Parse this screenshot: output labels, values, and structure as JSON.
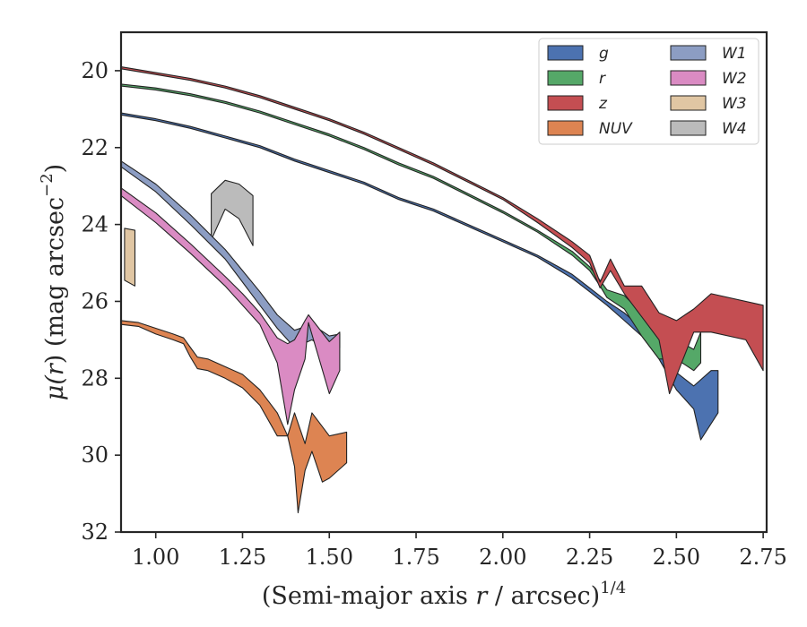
{
  "chart_data": {
    "type": "area",
    "xlabel": "(Semi-major axis r / arcsec)^1/4",
    "xlabel_parts": {
      "prefix": "(Semi-major axis ",
      "var": "r",
      "suffix": " / arcsec)",
      "sup": "1/4"
    },
    "ylabel": "μ(r) (mag arcsec^−2)",
    "ylabel_parts": {
      "prefix": "μ(",
      "var": "r",
      "suffix": ") (mag arcsec",
      "sup": "−2",
      "end": ")"
    },
    "xlim": [
      0.9,
      2.76
    ],
    "ylim": [
      32,
      19
    ],
    "y_inverted": true,
    "x_ticks": [
      "1.00",
      "1.25",
      "1.50",
      "1.75",
      "2.00",
      "2.25",
      "2.50",
      "2.75"
    ],
    "y_ticks": [
      "20",
      "22",
      "24",
      "26",
      "28",
      "30",
      "32"
    ],
    "grid": false,
    "legend_position": "top-right",
    "series": [
      {
        "name": "g",
        "color": "#4c72b0",
        "upper": [
          [
            0.9,
            21.1
          ],
          [
            1.0,
            21.25
          ],
          [
            1.1,
            21.45
          ],
          [
            1.2,
            21.7
          ],
          [
            1.3,
            21.95
          ],
          [
            1.4,
            22.3
          ],
          [
            1.5,
            22.6
          ],
          [
            1.6,
            22.9
          ],
          [
            1.7,
            23.3
          ],
          [
            1.8,
            23.6
          ],
          [
            1.9,
            24.0
          ],
          [
            2.0,
            24.4
          ],
          [
            2.1,
            24.8
          ],
          [
            2.2,
            25.3
          ],
          [
            2.25,
            25.65
          ],
          [
            2.3,
            26.0
          ],
          [
            2.35,
            26.3
          ],
          [
            2.4,
            26.7
          ],
          [
            2.45,
            27.2
          ],
          [
            2.5,
            27.85
          ],
          [
            2.55,
            28.2
          ],
          [
            2.6,
            27.8
          ],
          [
            2.62,
            27.8
          ]
        ],
        "lower": [
          [
            0.9,
            21.15
          ],
          [
            1.0,
            21.3
          ],
          [
            1.1,
            21.5
          ],
          [
            1.2,
            21.75
          ],
          [
            1.3,
            22.0
          ],
          [
            1.4,
            22.35
          ],
          [
            1.5,
            22.65
          ],
          [
            1.6,
            22.95
          ],
          [
            1.7,
            23.35
          ],
          [
            1.8,
            23.65
          ],
          [
            1.9,
            24.05
          ],
          [
            2.0,
            24.45
          ],
          [
            2.1,
            24.85
          ],
          [
            2.2,
            25.4
          ],
          [
            2.25,
            25.75
          ],
          [
            2.3,
            26.1
          ],
          [
            2.35,
            26.5
          ],
          [
            2.4,
            26.9
          ],
          [
            2.45,
            27.5
          ],
          [
            2.5,
            28.3
          ],
          [
            2.55,
            28.8
          ],
          [
            2.57,
            29.6
          ],
          [
            2.62,
            28.9
          ]
        ]
      },
      {
        "name": "r",
        "color": "#55a868",
        "upper": [
          [
            0.9,
            20.35
          ],
          [
            1.0,
            20.45
          ],
          [
            1.1,
            20.6
          ],
          [
            1.2,
            20.8
          ],
          [
            1.3,
            21.05
          ],
          [
            1.4,
            21.35
          ],
          [
            1.5,
            21.65
          ],
          [
            1.6,
            22.0
          ],
          [
            1.7,
            22.4
          ],
          [
            1.8,
            22.75
          ],
          [
            1.9,
            23.2
          ],
          [
            2.0,
            23.65
          ],
          [
            2.1,
            24.15
          ],
          [
            2.2,
            24.7
          ],
          [
            2.25,
            25.1
          ],
          [
            2.28,
            25.45
          ],
          [
            2.3,
            25.7
          ],
          [
            2.35,
            25.85
          ],
          [
            2.4,
            26.3
          ],
          [
            2.45,
            26.8
          ],
          [
            2.5,
            27.0
          ],
          [
            2.55,
            27.25
          ],
          [
            2.57,
            26.8
          ]
        ],
        "lower": [
          [
            0.9,
            20.4
          ],
          [
            1.0,
            20.5
          ],
          [
            1.1,
            20.65
          ],
          [
            1.2,
            20.85
          ],
          [
            1.3,
            21.1
          ],
          [
            1.4,
            21.4
          ],
          [
            1.5,
            21.7
          ],
          [
            1.6,
            22.05
          ],
          [
            1.7,
            22.45
          ],
          [
            1.8,
            22.8
          ],
          [
            1.9,
            23.25
          ],
          [
            2.0,
            23.7
          ],
          [
            2.1,
            24.2
          ],
          [
            2.2,
            24.8
          ],
          [
            2.25,
            25.2
          ],
          [
            2.28,
            25.6
          ],
          [
            2.3,
            25.9
          ],
          [
            2.35,
            26.2
          ],
          [
            2.4,
            26.9
          ],
          [
            2.45,
            27.5
          ],
          [
            2.5,
            27.5
          ],
          [
            2.55,
            27.8
          ],
          [
            2.57,
            27.6
          ]
        ]
      },
      {
        "name": "z",
        "color": "#c44e52",
        "upper": [
          [
            0.9,
            19.9
          ],
          [
            1.0,
            20.05
          ],
          [
            1.1,
            20.2
          ],
          [
            1.2,
            20.4
          ],
          [
            1.3,
            20.65
          ],
          [
            1.4,
            20.95
          ],
          [
            1.5,
            21.25
          ],
          [
            1.6,
            21.6
          ],
          [
            1.7,
            22.0
          ],
          [
            1.8,
            22.4
          ],
          [
            1.9,
            22.85
          ],
          [
            2.0,
            23.3
          ],
          [
            2.1,
            23.85
          ],
          [
            2.2,
            24.45
          ],
          [
            2.25,
            24.8
          ],
          [
            2.28,
            25.5
          ],
          [
            2.31,
            24.9
          ],
          [
            2.35,
            25.6
          ],
          [
            2.4,
            25.6
          ],
          [
            2.45,
            26.3
          ],
          [
            2.5,
            26.5
          ],
          [
            2.55,
            26.2
          ],
          [
            2.6,
            25.8
          ],
          [
            2.75,
            26.1
          ]
        ],
        "lower": [
          [
            0.9,
            19.95
          ],
          [
            1.0,
            20.1
          ],
          [
            1.1,
            20.25
          ],
          [
            1.2,
            20.45
          ],
          [
            1.3,
            20.7
          ],
          [
            1.4,
            21.0
          ],
          [
            1.5,
            21.3
          ],
          [
            1.6,
            21.65
          ],
          [
            1.7,
            22.05
          ],
          [
            1.8,
            22.45
          ],
          [
            1.9,
            22.9
          ],
          [
            2.0,
            23.35
          ],
          [
            2.1,
            23.95
          ],
          [
            2.2,
            24.6
          ],
          [
            2.25,
            25.0
          ],
          [
            2.28,
            25.65
          ],
          [
            2.31,
            25.2
          ],
          [
            2.35,
            25.8
          ],
          [
            2.4,
            26.4
          ],
          [
            2.45,
            27.0
          ],
          [
            2.48,
            28.4
          ],
          [
            2.55,
            26.8
          ],
          [
            2.6,
            26.8
          ],
          [
            2.7,
            27.0
          ],
          [
            2.75,
            27.8
          ]
        ]
      },
      {
        "name": "NUV",
        "color": "#dd8452",
        "upper": [
          [
            0.9,
            26.5
          ],
          [
            0.95,
            26.55
          ],
          [
            1.0,
            26.7
          ],
          [
            1.05,
            26.85
          ],
          [
            1.08,
            26.95
          ],
          [
            1.1,
            27.2
          ],
          [
            1.12,
            27.45
          ],
          [
            1.15,
            27.5
          ],
          [
            1.2,
            27.7
          ],
          [
            1.25,
            27.9
          ],
          [
            1.3,
            28.3
          ],
          [
            1.35,
            28.9
          ],
          [
            1.38,
            29.5
          ],
          [
            1.4,
            28.9
          ],
          [
            1.43,
            29.7
          ],
          [
            1.45,
            28.9
          ],
          [
            1.5,
            29.5
          ],
          [
            1.55,
            29.4
          ]
        ],
        "lower": [
          [
            0.9,
            26.6
          ],
          [
            0.95,
            26.65
          ],
          [
            1.0,
            26.85
          ],
          [
            1.05,
            27.0
          ],
          [
            1.08,
            27.1
          ],
          [
            1.1,
            27.45
          ],
          [
            1.12,
            27.75
          ],
          [
            1.15,
            27.8
          ],
          [
            1.2,
            28.0
          ],
          [
            1.25,
            28.25
          ],
          [
            1.3,
            28.7
          ],
          [
            1.35,
            29.5
          ],
          [
            1.38,
            29.5
          ],
          [
            1.4,
            30.3
          ],
          [
            1.41,
            31.5
          ],
          [
            1.43,
            30.4
          ],
          [
            1.45,
            29.9
          ],
          [
            1.48,
            30.7
          ],
          [
            1.5,
            30.6
          ],
          [
            1.55,
            30.2
          ]
        ]
      },
      {
        "name": "W1",
        "color": "#8c9dc3",
        "upper": [
          [
            0.9,
            22.35
          ],
          [
            1.0,
            22.95
          ],
          [
            1.1,
            23.75
          ],
          [
            1.2,
            24.65
          ],
          [
            1.25,
            25.2
          ],
          [
            1.3,
            25.75
          ],
          [
            1.35,
            26.35
          ],
          [
            1.4,
            26.75
          ],
          [
            1.45,
            26.6
          ],
          [
            1.5,
            26.9
          ],
          [
            1.53,
            26.85
          ]
        ],
        "lower": [
          [
            0.9,
            22.5
          ],
          [
            1.0,
            23.15
          ],
          [
            1.1,
            24.0
          ],
          [
            1.2,
            24.9
          ],
          [
            1.25,
            25.5
          ],
          [
            1.3,
            26.1
          ],
          [
            1.35,
            26.7
          ],
          [
            1.4,
            27.2
          ],
          [
            1.45,
            27.0
          ],
          [
            1.5,
            27.3
          ],
          [
            1.53,
            27.2
          ]
        ]
      },
      {
        "name": "W2",
        "color": "#da8bc3",
        "upper": [
          [
            0.9,
            23.05
          ],
          [
            1.0,
            23.7
          ],
          [
            1.1,
            24.5
          ],
          [
            1.2,
            25.35
          ],
          [
            1.25,
            25.8
          ],
          [
            1.3,
            26.3
          ],
          [
            1.35,
            26.95
          ],
          [
            1.38,
            27.1
          ],
          [
            1.4,
            27.0
          ],
          [
            1.43,
            26.5
          ],
          [
            1.44,
            26.35
          ],
          [
            1.5,
            27.05
          ],
          [
            1.53,
            26.8
          ]
        ],
        "lower": [
          [
            0.9,
            23.25
          ],
          [
            1.0,
            23.95
          ],
          [
            1.1,
            24.75
          ],
          [
            1.2,
            25.6
          ],
          [
            1.25,
            26.1
          ],
          [
            1.3,
            26.6
          ],
          [
            1.35,
            27.6
          ],
          [
            1.38,
            29.2
          ],
          [
            1.4,
            28.3
          ],
          [
            1.43,
            27.5
          ],
          [
            1.44,
            26.55
          ],
          [
            1.5,
            28.4
          ],
          [
            1.53,
            27.8
          ]
        ]
      },
      {
        "name": "W3",
        "color": "#e0c6a3",
        "upper": [
          [
            0.91,
            24.1
          ],
          [
            0.94,
            24.15
          ]
        ],
        "lower": [
          [
            0.91,
            25.45
          ],
          [
            0.94,
            25.6
          ]
        ]
      },
      {
        "name": "W4",
        "color": "#bbbbbb",
        "upper": [
          [
            1.16,
            23.2
          ],
          [
            1.2,
            22.85
          ],
          [
            1.24,
            22.95
          ],
          [
            1.28,
            23.25
          ]
        ],
        "lower": [
          [
            1.16,
            24.4
          ],
          [
            1.2,
            23.6
          ],
          [
            1.24,
            23.85
          ],
          [
            1.28,
            24.55
          ]
        ]
      }
    ],
    "legend_columns": [
      [
        "g",
        "r",
        "z",
        "NUV"
      ],
      [
        "W1",
        "W2",
        "W3",
        "W4"
      ]
    ]
  }
}
